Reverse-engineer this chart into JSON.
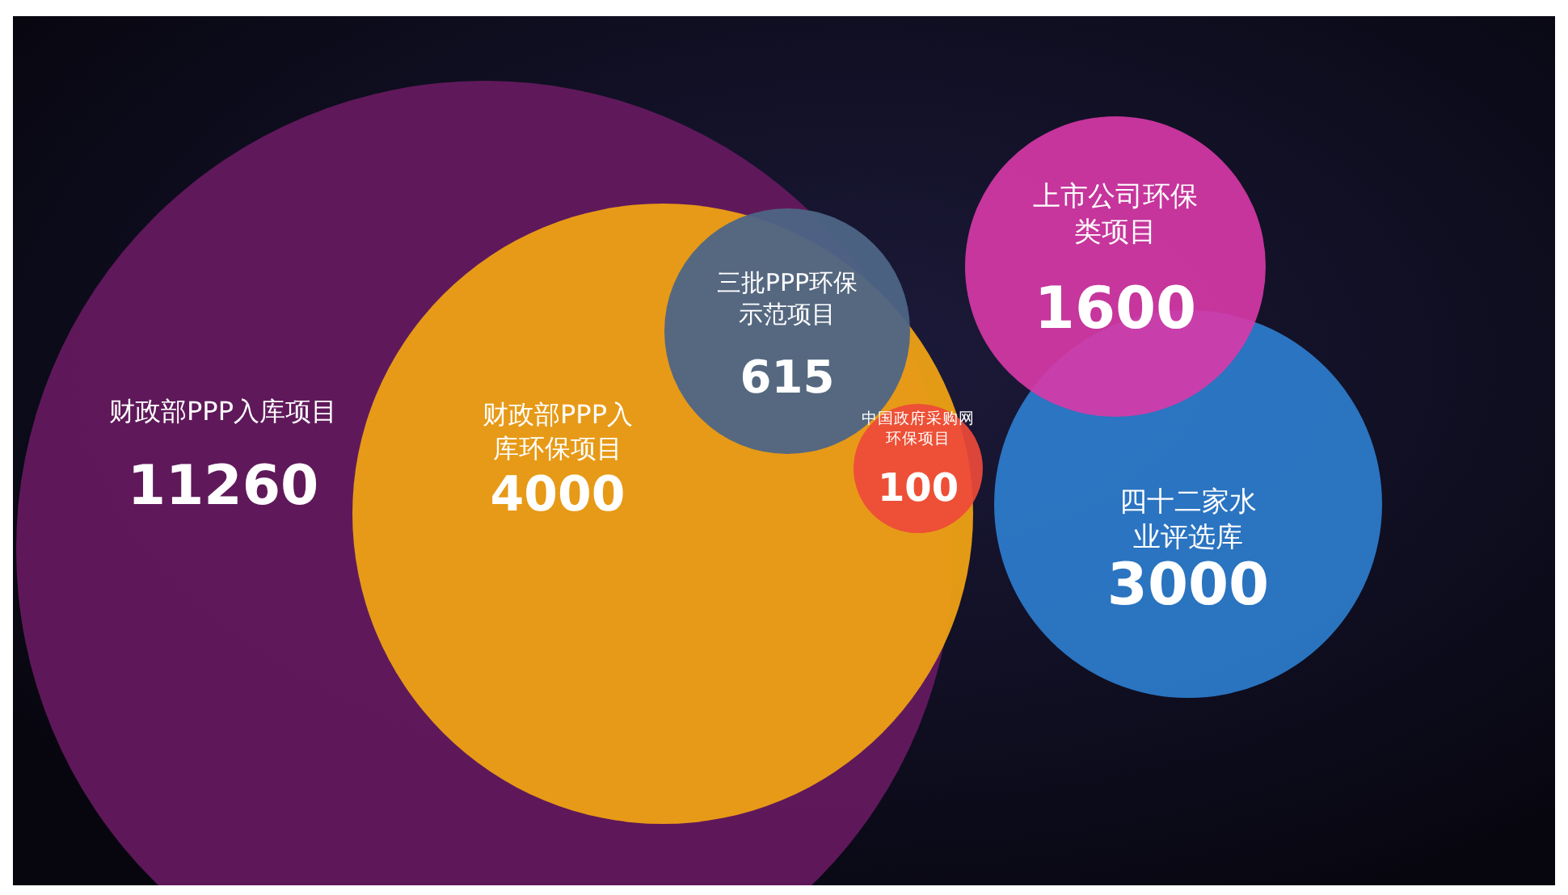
{
  "chart_data": {
    "type": "other",
    "categories": [
      "财政部PPP入库项目",
      "财政部PPP入库环保项目",
      "三批PPP环保示范项目",
      "中国政府采购网环保项目",
      "上市公司环保类项目",
      "四十二家水业评选库"
    ],
    "values": [
      11260,
      4000,
      615,
      100,
      1600,
      3000
    ],
    "colors": [
      "#661a5f",
      "#eea114",
      "#4d6586",
      "#ee4a3a",
      "#d93aa8",
      "#2f86dc"
    ],
    "data_labels": true
  }
}
